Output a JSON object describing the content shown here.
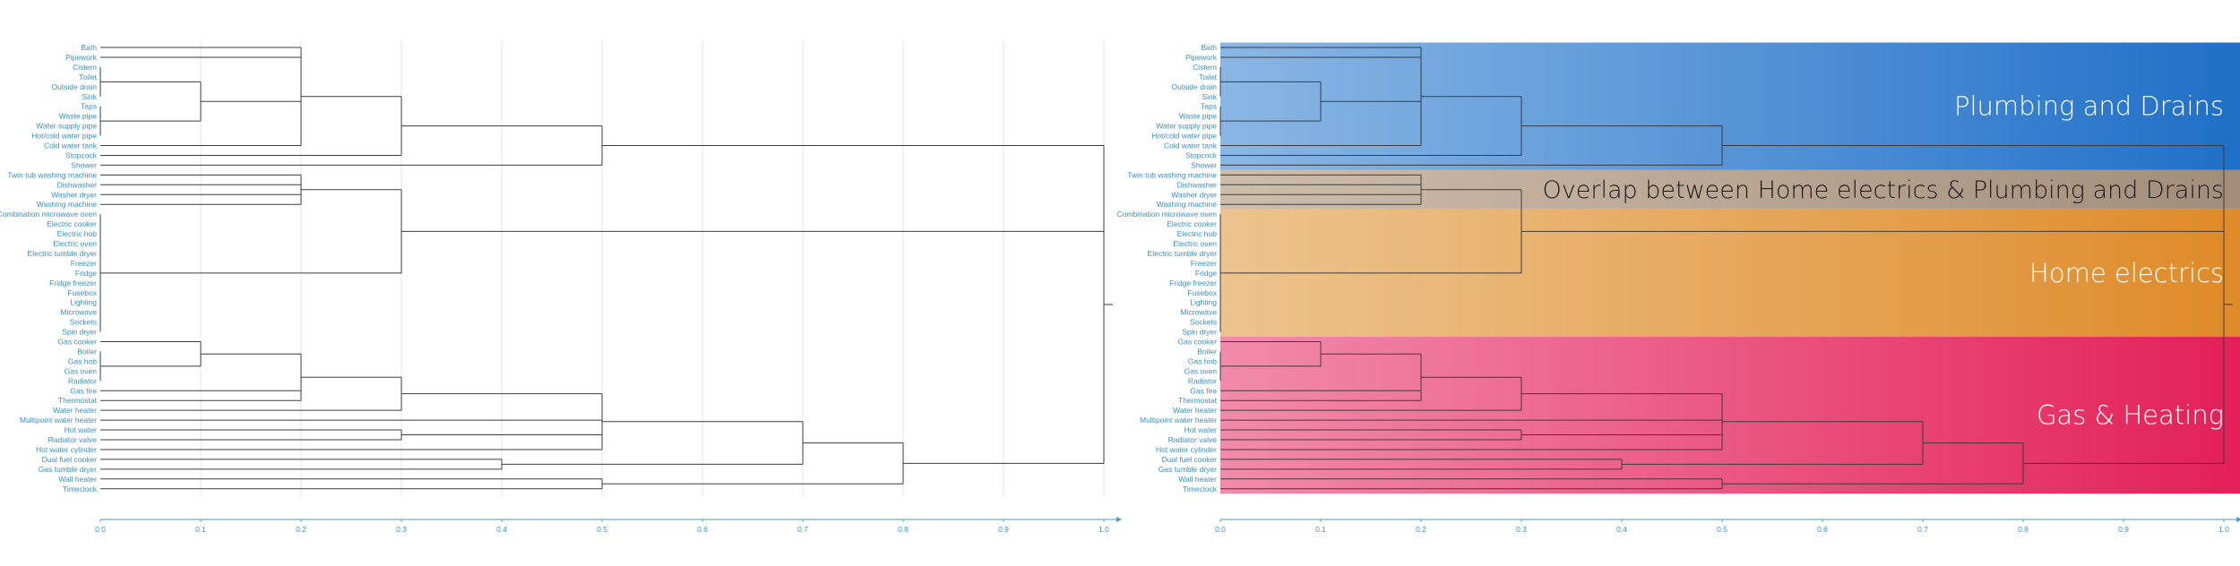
{
  "chart_data": [
    {
      "type": "dendrogram",
      "title": "",
      "xlabel": "",
      "ylabel": "",
      "xlim": [
        0,
        1.0
      ],
      "xticks": [
        "0.0",
        "0.1",
        "0.2",
        "0.3",
        "0.4",
        "0.5",
        "0.6",
        "0.7",
        "0.8",
        "0.9",
        "1.0"
      ],
      "grid": true,
      "leaves": [
        "Bath",
        "Pipework",
        "Cistern",
        "Toilet",
        "Outside drain",
        "Sink",
        "Taps",
        "Waste pipe",
        "Water supply pipe",
        "Hot/cold water pipe",
        "Cold water tank",
        "Stopcock",
        "Shower",
        "Twin tub washing machine",
        "Dishwasher",
        "Washer dryer",
        "Washing machine",
        "Combination microwave oven",
        "Electric cooker",
        "Electric hob",
        "Electric oven",
        "Electric tumble dryer",
        "Freezer",
        "Fridge",
        "Fridge freezer",
        "Fusebox",
        "Lighting",
        "Microwave",
        "Sockets",
        "Spin dryer",
        "Gas cooker",
        "Boiler",
        "Gas hob",
        "Gas oven",
        "Radiator",
        "Gas fire",
        "Thermostat",
        "Water heater",
        "Multipoint water heater",
        "Hot water",
        "Radiator valve",
        "Hot water cylinder",
        "Dual fuel cooker",
        "Gas tumble dryer",
        "Wall heater",
        "Timeclock"
      ],
      "merges": [
        {
          "id": "a",
          "children": [
            "Cistern",
            "Toilet",
            "Outside drain",
            "Sink"
          ],
          "height": 0.0
        },
        {
          "id": "b",
          "children": [
            "Taps",
            "Waste pipe",
            "Water supply pipe",
            "Hot/cold water pipe"
          ],
          "height": 0.0
        },
        {
          "id": "c",
          "children": [
            "a",
            "b"
          ],
          "height": 0.1
        },
        {
          "id": "d",
          "children": [
            "Bath",
            "Pipework",
            "c",
            "Cold water tank"
          ],
          "height": 0.2
        },
        {
          "id": "e",
          "children": [
            "d",
            "Stopcock"
          ],
          "height": 0.3
        },
        {
          "id": "f",
          "children": [
            "e",
            "Shower"
          ],
          "height": 0.5
        },
        {
          "id": "g",
          "children": [
            "Twin tub washing machine",
            "Dishwasher",
            "Washer dryer",
            "Washing machine"
          ],
          "height": 0.2
        },
        {
          "id": "h",
          "children": [
            "Combination microwave oven",
            "Electric cooker",
            "Electric hob",
            "Electric oven",
            "Electric tumble dryer",
            "Freezer",
            "Fridge",
            "Fridge freezer",
            "Fusebox",
            "Lighting",
            "Microwave",
            "Sockets",
            "Spin dryer"
          ],
          "height": 0.0
        },
        {
          "id": "i",
          "children": [
            "g",
            "h"
          ],
          "height": 0.3
        },
        {
          "id": "j",
          "children": [
            "Boiler",
            "Gas hob",
            "Gas oven",
            "Radiator"
          ],
          "height": 0.0
        },
        {
          "id": "k",
          "children": [
            "Gas cooker",
            "j"
          ],
          "height": 0.1
        },
        {
          "id": "l",
          "children": [
            "k",
            "Gas fire",
            "Thermostat"
          ],
          "height": 0.2
        },
        {
          "id": "m",
          "children": [
            "l",
            "Water heater"
          ],
          "height": 0.3
        },
        {
          "id": "n",
          "children": [
            "Hot water",
            "Radiator valve"
          ],
          "height": 0.3
        },
        {
          "id": "o",
          "children": [
            "m",
            "Multipoint water heater",
            "n",
            "Hot water cylinder"
          ],
          "height": 0.5
        },
        {
          "id": "p",
          "children": [
            "Dual fuel cooker",
            "Gas tumble dryer"
          ],
          "height": 0.4
        },
        {
          "id": "q",
          "children": [
            "o",
            "p"
          ],
          "height": 0.7
        },
        {
          "id": "r",
          "children": [
            "Wall heater",
            "Timeclock"
          ],
          "height": 0.5
        },
        {
          "id": "s",
          "children": [
            "q",
            "r"
          ],
          "height": 0.8
        },
        {
          "id": "t",
          "children": [
            "f",
            "i",
            "s"
          ],
          "height": 1.0
        }
      ]
    }
  ],
  "bands": [
    {
      "label": "Plumbing and Drains",
      "first_leaf": "Bath",
      "last_leaf": "Shower",
      "color_start": "#7fb0e2",
      "color_end": "#1f6fc8"
    },
    {
      "label": "Overlap between Home electrics & Plumbing and Drains",
      "first_leaf": "Twin tub washing machine",
      "last_leaf": "Washing machine",
      "color_start": "#c9b7a3",
      "color_end": "#a38d7a"
    },
    {
      "label": "Home electrics",
      "first_leaf": "Combination microwave oven",
      "last_leaf": "Spin dryer",
      "color_start": "#ebbe83",
      "color_end": "#df8a28"
    },
    {
      "label": "Gas & Heating",
      "first_leaf": "Gas cooker",
      "last_leaf": "Timeclock",
      "color_start": "#f080a4",
      "color_end": "#e31f58"
    }
  ],
  "colors": {
    "labels": "#3a8fc4",
    "axis": "#4a9cc9",
    "lines": "#3c3c3c",
    "grid": "#e6e6e6"
  }
}
